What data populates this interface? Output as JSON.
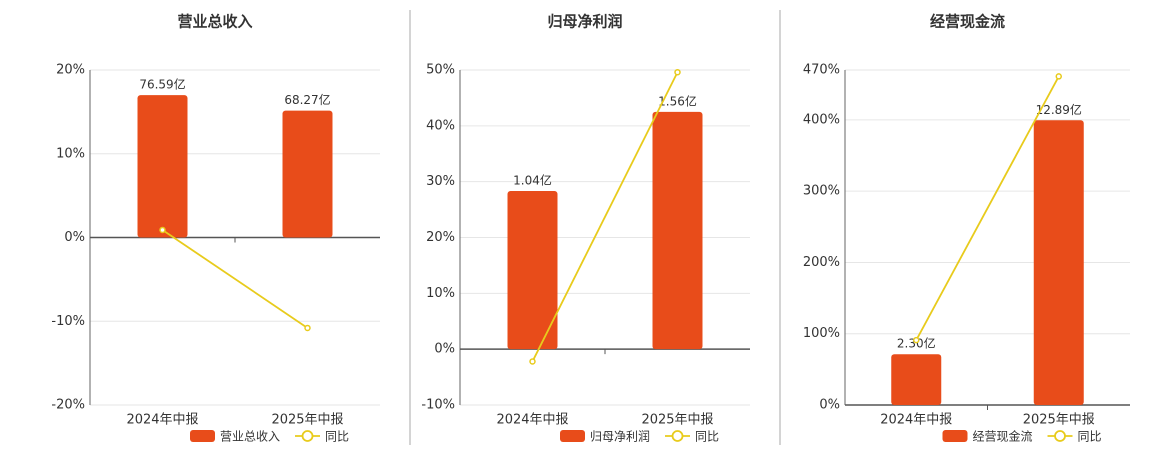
{
  "chart_data": [
    {
      "type": "bar",
      "title": "营业总收入",
      "categories": [
        "2024年中报",
        "2025年中报"
      ],
      "series": [
        {
          "name": "营业总收入",
          "type": "bar",
          "color": "#e84c1a",
          "values": [
            76.59,
            68.27
          ],
          "value_labels": [
            "76.59亿",
            "68.27亿"
          ]
        },
        {
          "name": "同比",
          "type": "line",
          "color": "#e8cb1c",
          "values": [
            0.9,
            -10.8
          ]
        }
      ],
      "ylim": [
        -20,
        20
      ],
      "yticks": [
        {
          "value": -20,
          "label": "-20%"
        },
        {
          "value": -10,
          "label": "-10%"
        },
        {
          "value": 0,
          "label": "0%"
        },
        {
          "value": 10,
          "label": "10%"
        },
        {
          "value": 20,
          "label": "20%"
        }
      ],
      "grid": true
    },
    {
      "type": "bar",
      "title": "归母净利润",
      "categories": [
        "2024年中报",
        "2025年中报"
      ],
      "series": [
        {
          "name": "归母净利润",
          "type": "bar",
          "color": "#e84c1a",
          "values": [
            1.04,
            1.56
          ],
          "value_labels": [
            "1.04亿",
            "1.56亿"
          ]
        },
        {
          "name": "同比",
          "type": "line",
          "color": "#e8cb1c",
          "values": [
            -2.2,
            49.6
          ]
        }
      ],
      "ylim": [
        -10,
        50
      ],
      "yticks": [
        {
          "value": -10,
          "label": "-10%"
        },
        {
          "value": 0,
          "label": "0%"
        },
        {
          "value": 10,
          "label": "10%"
        },
        {
          "value": 20,
          "label": "20%"
        },
        {
          "value": 30,
          "label": "30%"
        },
        {
          "value": 40,
          "label": "40%"
        },
        {
          "value": 50,
          "label": "50%"
        }
      ],
      "grid": true
    },
    {
      "type": "bar",
      "title": "经营现金流",
      "categories": [
        "2024年中报",
        "2025年中报"
      ],
      "series": [
        {
          "name": "经营现金流",
          "type": "bar",
          "color": "#e84c1a",
          "values": [
            2.3,
            12.89
          ],
          "value_labels": [
            "2.30亿",
            "12.89亿"
          ]
        },
        {
          "name": "同比",
          "type": "line",
          "color": "#e8cb1c",
          "values": [
            91,
            461
          ]
        }
      ],
      "ylim": [
        0,
        470
      ],
      "yticks": [
        {
          "value": 0,
          "label": "0%"
        },
        {
          "value": 100,
          "label": "100%"
        },
        {
          "value": 200,
          "label": "200%"
        },
        {
          "value": 300,
          "label": "300%"
        },
        {
          "value": 400,
          "label": "400%"
        },
        {
          "value": 470,
          "label": "470%"
        }
      ],
      "grid": true
    }
  ]
}
